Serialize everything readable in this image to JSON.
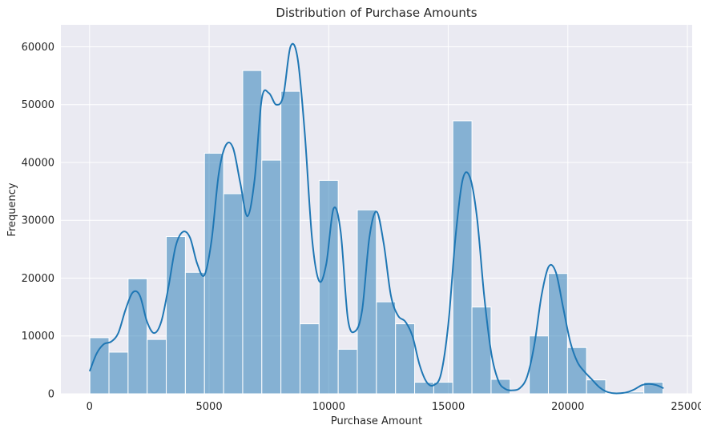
{
  "chart_data": {
    "type": "bar",
    "title": "Distribution of Purchase Amounts",
    "xlabel": "Purchase Amount",
    "ylabel": "Frequency",
    "xlim": [
      -1200,
      25200
    ],
    "ylim": [
      0,
      63800
    ],
    "x_ticks": [
      0,
      5000,
      10000,
      15000,
      20000,
      25000
    ],
    "y_ticks": [
      0,
      10000,
      20000,
      30000,
      40000,
      50000,
      60000
    ],
    "grid": true,
    "background": "#eaeaf2",
    "bar_color": "#1f77b4",
    "bar_opacity": 0.5,
    "kde_color": "#1f77b4",
    "bins": {
      "edges": [
        12,
        811,
        1610,
        2408,
        3207,
        4006,
        4805,
        5604,
        6403,
        7202,
        8001,
        8800,
        9598,
        10397,
        11196,
        11995,
        12794,
        13593,
        14392,
        15191,
        15990,
        16789,
        17588,
        18387,
        19186,
        19985,
        20783,
        21582,
        22381,
        23180,
        23979
      ],
      "counts": [
        9700,
        7200,
        19900,
        9400,
        27200,
        21000,
        41600,
        34600,
        55900,
        40400,
        52300,
        12100,
        36900,
        7700,
        31800,
        15900,
        12100,
        2000,
        2000,
        47200,
        15000,
        2500,
        0,
        10000,
        20800,
        8000,
        2400,
        0,
        300,
        2000
      ]
    },
    "kde": {
      "x": [
        12,
        300,
        600,
        900,
        1200,
        1500,
        1800,
        2100,
        2400,
        2700,
        3000,
        3300,
        3600,
        3900,
        4200,
        4500,
        4800,
        5100,
        5400,
        5700,
        6000,
        6300,
        6600,
        6900,
        7200,
        7500,
        7800,
        8100,
        8400,
        8700,
        9000,
        9300,
        9600,
        9900,
        10200,
        10500,
        10800,
        11100,
        11400,
        11700,
        12000,
        12300,
        12600,
        12900,
        13200,
        13500,
        13800,
        14100,
        14400,
        14700,
        15000,
        15300,
        15600,
        15900,
        16200,
        16500,
        16800,
        17100,
        17400,
        17700,
        18000,
        18300,
        18600,
        18900,
        19200,
        19500,
        19800,
        20100,
        20400,
        20700,
        21000,
        21300,
        21600,
        21900,
        22200,
        22500,
        22800,
        23100,
        23400,
        23700,
        23979
      ],
      "y": [
        4000,
        7000,
        8600,
        9000,
        10500,
        14500,
        17500,
        17000,
        12500,
        10500,
        12500,
        18500,
        25500,
        28000,
        27000,
        22500,
        20500,
        26500,
        38000,
        43000,
        42500,
        36500,
        30700,
        37000,
        51000,
        52000,
        50000,
        51500,
        60000,
        58000,
        45000,
        27000,
        19500,
        22500,
        32000,
        28000,
        13000,
        10800,
        14500,
        27000,
        31500,
        26000,
        17000,
        13500,
        12500,
        10000,
        5000,
        2000,
        1500,
        3500,
        12000,
        27000,
        37000,
        37500,
        30500,
        17000,
        7000,
        2200,
        800,
        600,
        1000,
        3000,
        8500,
        17000,
        22000,
        21000,
        15000,
        9000,
        5500,
        3800,
        2500,
        1200,
        400,
        100,
        100,
        300,
        800,
        1500,
        1700,
        1500,
        1000
      ]
    }
  }
}
